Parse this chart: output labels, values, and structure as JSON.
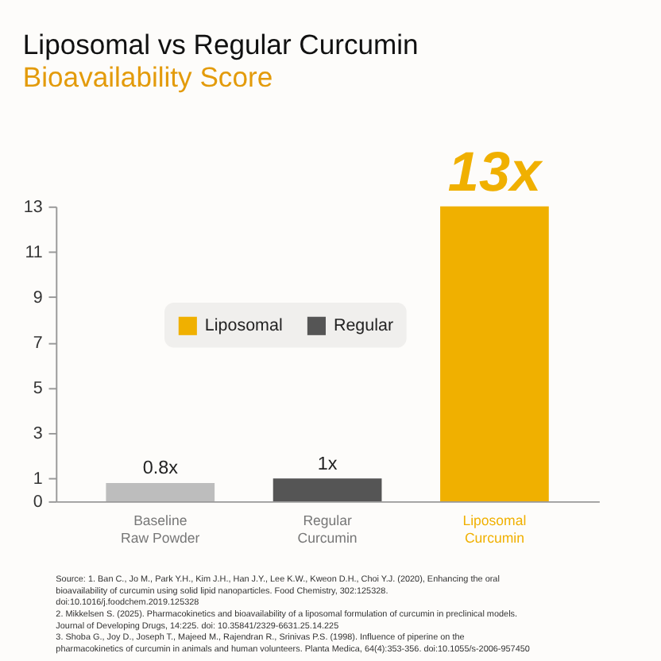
{
  "chart_data": {
    "type": "bar",
    "title": "Liposomal vs Regular Curcumin",
    "subtitle": "Bioavailability Score",
    "categories": [
      "Baseline\nRaw Powder",
      "Regular\nCurcumin",
      "Liposomal\nCurcumin"
    ],
    "series": [
      {
        "name": "Liposomal",
        "color": "#f0b000",
        "values": [
          null,
          null,
          13
        ],
        "value_labels": [
          null,
          null,
          "13x"
        ]
      },
      {
        "name": "Regular",
        "color": "#555555",
        "values": [
          null,
          1,
          null
        ],
        "value_labels": [
          null,
          "1x",
          null
        ]
      },
      {
        "color": "#bdbdbd",
        "values": [
          0.8,
          null,
          null
        ],
        "value_labels": [
          "0.8x",
          null,
          null
        ]
      }
    ],
    "ylim": [
      0,
      13
    ],
    "yticks": [
      0,
      1,
      3,
      5,
      7,
      9,
      11,
      13
    ],
    "grid": false,
    "legend": "left",
    "annotations": [
      "Source: 1. Ban C., Jo M., Park Y.H., Kim J.H., Han J.Y., Lee K.W., Kweon D.H., Choi Y.J. (2020), Enhancing the oral bioavailability of curcumin using solid lipid nanoparticles. Food Chemistry, 302:125328. doi:10.1016/j.foodchem.2019.125328",
      "2. Mikkelsen S. (2025). Pharmacokinetics and bioavailability of a liposomal formulation of curcumin in preclinical models. Journal of Developing Drugs, 14:225. doi: 10.35841/2329-6631.25.14.225",
      "3. Shoba G., Joy D., Joseph T., Majeed M., Rajendran R., Srinivas P.S. (1998). Influence of piperine on the pharmacokinetics of curcumin in animals and human volunteers. Planta Medica, 64(4):353-356. doi:10.1055/s-2006-957450"
    ]
  }
}
